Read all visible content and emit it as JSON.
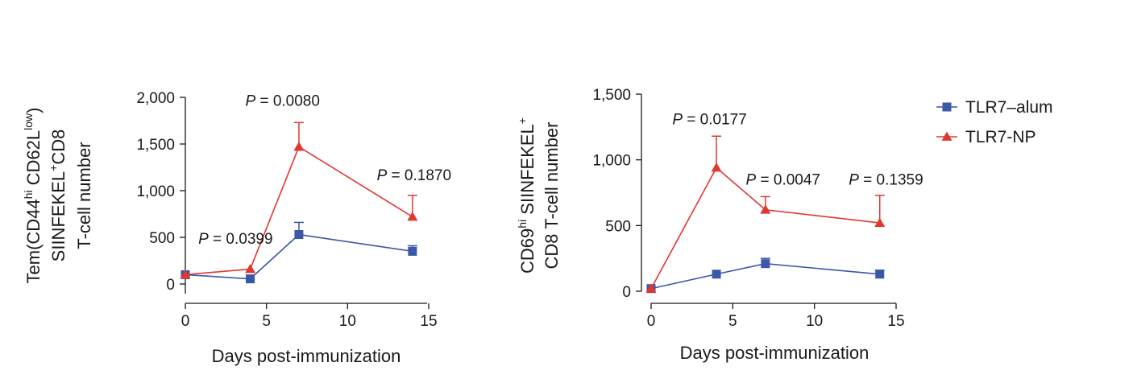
{
  "chart_data": [
    {
      "type": "line",
      "ylabel_lines": [
        "Tem(CD44hi CD62Llow)",
        "SIINFEKEL+CD8",
        "T-cell number"
      ],
      "xlabel": "Days post-immunization",
      "xlim": [
        0,
        15
      ],
      "ylim": [
        0,
        2000
      ],
      "xticks": [
        0,
        5,
        10,
        15
      ],
      "xtick_labels": [
        "0",
        "5",
        "10",
        "15"
      ],
      "yticks": [
        0,
        500,
        1000,
        1500,
        2000
      ],
      "ytick_labels": [
        "0",
        "500",
        "1,000",
        "1,500",
        "2,000"
      ],
      "series": [
        {
          "name": "TLR7–alum",
          "color": "#3a57a8",
          "marker": "square",
          "x": [
            0,
            4,
            7,
            14
          ],
          "y": [
            100,
            55,
            530,
            350
          ],
          "err": [
            0,
            0,
            130,
            60
          ]
        },
        {
          "name": "TLR7-NP",
          "color": "#e0382f",
          "marker": "triangle",
          "x": [
            0,
            4,
            7,
            14
          ],
          "y": [
            100,
            160,
            1470,
            720
          ],
          "err": [
            0,
            0,
            260,
            230
          ]
        }
      ],
      "annotations": [
        {
          "prefix": "P",
          "text": " = 0.0399",
          "x": 0.8,
          "y": 430
        },
        {
          "prefix": "P",
          "text": " = 0.0080",
          "x": 3.7,
          "y": 1910
        },
        {
          "prefix": "P",
          "text": " = 0.1870",
          "x": 11.8,
          "y": 1110
        }
      ]
    },
    {
      "type": "line",
      "ylabel_lines": [
        "CD69hi SIINFEKEL+",
        "CD8 T-cell number"
      ],
      "xlabel": "Days post-immunization",
      "xlim": [
        0,
        15
      ],
      "ylim": [
        0,
        1500
      ],
      "xticks": [
        0,
        5,
        10,
        15
      ],
      "xtick_labels": [
        "0",
        "5",
        "10",
        "15"
      ],
      "yticks": [
        0,
        500,
        1000,
        1500
      ],
      "ytick_labels": [
        "0",
        "500",
        "1,000",
        "1,500"
      ],
      "series": [
        {
          "name": "TLR7–alum",
          "color": "#3a57a8",
          "marker": "square",
          "x": [
            0,
            4,
            7,
            14
          ],
          "y": [
            20,
            130,
            210,
            130
          ],
          "err": [
            0,
            0,
            40,
            30
          ]
        },
        {
          "name": "TLR7-NP",
          "color": "#e0382f",
          "marker": "triangle",
          "x": [
            0,
            4,
            7,
            14
          ],
          "y": [
            20,
            940,
            620,
            520
          ],
          "err": [
            0,
            240,
            100,
            210
          ]
        }
      ],
      "annotations": [
        {
          "prefix": "P",
          "text": " = 0.0177",
          "x": 1.3,
          "y": 1270
        },
        {
          "prefix": "P",
          "text": " = 0.0047",
          "x": 5.8,
          "y": 810
        },
        {
          "prefix": "P",
          "text": " = 0.1359",
          "x": 12.1,
          "y": 810
        }
      ]
    }
  ],
  "legend": {
    "placement": "top-right",
    "items": [
      {
        "label": "TLR7–alum",
        "color": "#3a57a8",
        "marker": "square"
      },
      {
        "label": "TLR7-NP",
        "color": "#e0382f",
        "marker": "triangle"
      }
    ]
  }
}
